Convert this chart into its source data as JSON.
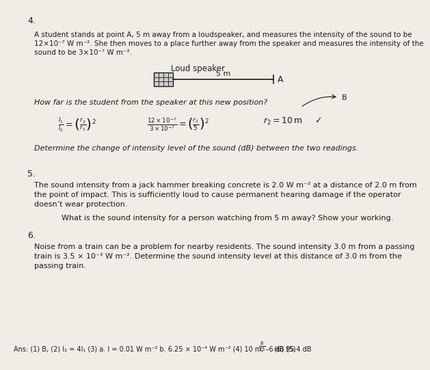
{
  "bg_color": "#f0ede6",
  "text_color": "#1a1a1a",
  "title_number": "4.",
  "q5_number": "5.",
  "q6_number": "6.",
  "loud_speaker_label": "Loud speaker",
  "diagram_label_A": "A",
  "diagram_label_5m": "5 m",
  "q4_intro_line1": "A student stands at point A, 5 m away from a loudspeaker, and measures the intensity of the sound to be",
  "q4_intro_line2": "12×10⁻⁷ W m⁻². She then moves to a place further away from the speaker and measures the intensity of the",
  "q4_intro_line3": "sound to be 3×10⁻⁷ W m⁻².",
  "q4_question1": "How far is the student from the speaker at this new position?",
  "q4_question2": "Determine the change of intensity level of the sound (dB) between the two readings.",
  "q5_line1": "The sound intensity from a jack hammer breaking concrete is 2.0 W m⁻² at a distance of 2.0 m from",
  "q5_line2": "the point of impact. This is sufficiently loud to cause permanent hearing damage if the operator",
  "q5_line3": "doesn’t wear protection.",
  "q5_sub": "What is the sound intensity for a person watching from 5 m away? Show your working.",
  "q6_line1": "Noise from a train can be a problem for nearby residents. The sound intensity 3.0 m from a passing",
  "q6_line2": "train is 3.5 × 10⁻³ W m⁻². Determine the sound intensity level at this distance of 3.0 m from the",
  "q6_line3": "passing train.",
  "ans_prefix": "Ans: (1) B, (2) I₂ = 4I₁ (3) a. I = 0.01 W m⁻² b. 6.25 × 10⁻⁴ W m⁻² (4) 10 m, –6 dB (5) ",
  "ans_suffix": " (6) 95.4 dB"
}
